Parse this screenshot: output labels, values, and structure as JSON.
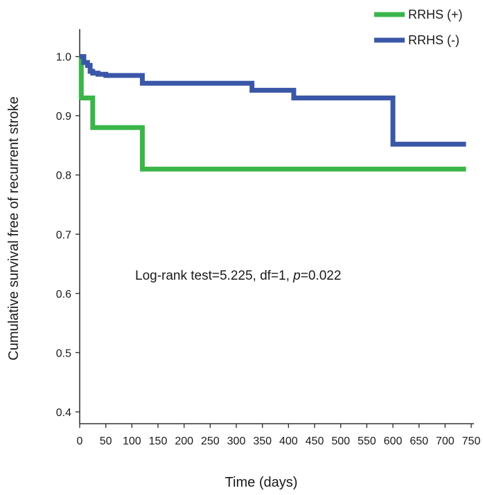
{
  "chart_data": {
    "type": "line",
    "xlabel": "Time (days)",
    "ylabel": "Cumulative survival free of recurrent stroke",
    "xlim": [
      0,
      750
    ],
    "ylim": [
      0.38,
      1.03
    ],
    "x_ticks": [
      0,
      50,
      100,
      150,
      200,
      250,
      300,
      350,
      400,
      450,
      500,
      550,
      600,
      650,
      700,
      750
    ],
    "y_ticks": [
      0.4,
      0.5,
      0.6,
      0.7,
      0.8,
      0.9,
      1.0
    ],
    "y_tick_labels": [
      "0.4",
      "0.5",
      "0.6",
      "0.7",
      "0.8",
      "0.9",
      "1.0"
    ],
    "grid": false,
    "legend_position": "top-right",
    "annotation": {
      "prefix": "Log-rank test=5.225, df=1, ",
      "p_symbol": "p",
      "suffix": "=0.022"
    },
    "series": [
      {
        "name": "RRHS (+)",
        "color": "#3bb54a",
        "step": true,
        "x": [
          0,
          3,
          15,
          25,
          120,
          740
        ],
        "y": [
          1.0,
          0.93,
          0.93,
          0.88,
          0.81,
          0.81
        ]
      },
      {
        "name": "RRHS (-)",
        "color": "#3a57a7",
        "step": true,
        "x": [
          0,
          8,
          15,
          20,
          25,
          35,
          50,
          120,
          330,
          410,
          600,
          740
        ],
        "y": [
          1.0,
          0.99,
          0.985,
          0.975,
          0.972,
          0.97,
          0.968,
          0.955,
          0.943,
          0.93,
          0.852,
          0.852
        ]
      }
    ]
  }
}
